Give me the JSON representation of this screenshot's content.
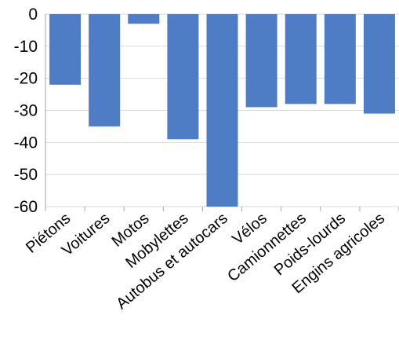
{
  "chart_data": {
    "type": "bar",
    "categories": [
      "Piétons",
      "Voitures",
      "Motos",
      "Mobylettes",
      "Autobus et autocars",
      "Vélos",
      "Camionnettes",
      "Poids-lourds",
      "Engins agricoles"
    ],
    "series": [
      {
        "values": [
          -22,
          -35,
          -3,
          -39,
          -60,
          -29,
          -28,
          -28,
          -31
        ]
      }
    ],
    "ylim": [
      -60,
      0
    ],
    "yticks": [
      0,
      -10,
      -20,
      -30,
      -40,
      -50,
      -60
    ],
    "title": "",
    "xlabel": "",
    "ylabel": "",
    "grid": true,
    "legend": "none",
    "colors": {
      "bar": "#4f7dc5",
      "grid": "#d9d9d9",
      "axis": "#a6a6a6"
    }
  }
}
